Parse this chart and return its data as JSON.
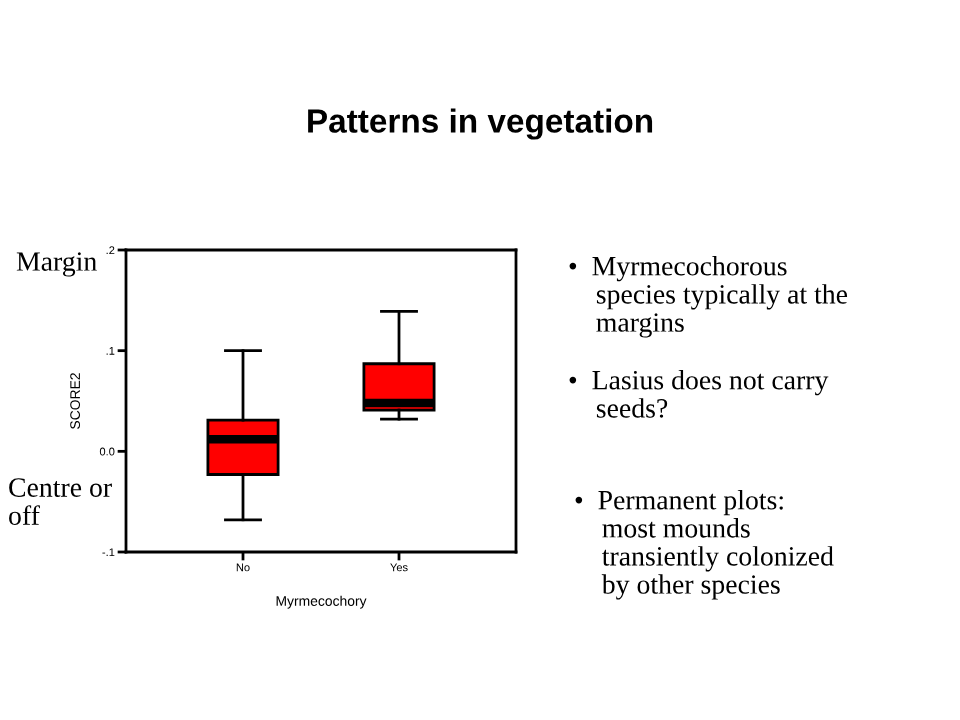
{
  "chart_data": {
    "type": "box",
    "title": "Patterns in vegetation",
    "xlabel": "Myrmecochory",
    "ylabel": "SCORE2",
    "categories": [
      "No",
      "Yes"
    ],
    "boxes": [
      {
        "low": -0.068,
        "q1": -0.023,
        "median": 0.012,
        "q3": 0.031,
        "high": 0.1
      },
      {
        "low": 0.032,
        "q1": 0.041,
        "median": 0.048,
        "q3": 0.087,
        "high": 0.139
      }
    ],
    "color": "#ff0000",
    "ylim": [
      -0.1,
      0.2
    ],
    "yticks": [
      {
        "value": -0.1,
        "label": "-.1"
      },
      {
        "value": 0.0,
        "label": "0.0"
      },
      {
        "value": 0.1,
        "label": ".1"
      },
      {
        "value": 0.2,
        "label": ".2"
      }
    ],
    "grid": false,
    "annotations": [
      "Margin",
      "Centre or\noff",
      "•  Myrmecochorous\n    species typically at the\n    margins",
      "•  Lasius does not carry\n    seeds?",
      "•  Permanent plots:\n    most mounds\n    transiently colonized\n    by other species"
    ]
  }
}
